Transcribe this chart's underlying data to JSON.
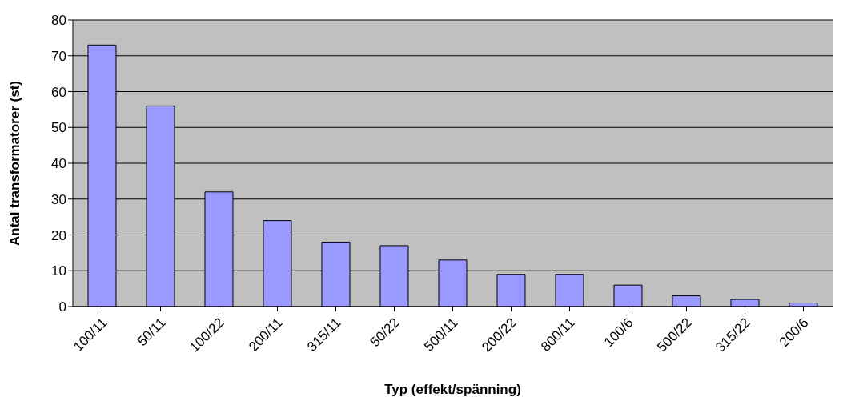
{
  "chart_data": {
    "type": "bar",
    "xlabel": "Typ (effekt/spänning)",
    "ylabel": "Antal transformatorer (st)",
    "categories": [
      "100/11",
      "50/11",
      "100/22",
      "200/11",
      "315/11",
      "50/22",
      "500/11",
      "200/22",
      "800/11",
      "100/6",
      "500/22",
      "315/22",
      "200/6"
    ],
    "values": [
      73,
      56,
      32,
      24,
      18,
      17,
      13,
      9,
      9,
      6,
      3,
      2,
      1
    ],
    "color": "#9999ff",
    "ylim": [
      0,
      80
    ],
    "yticks": [
      0,
      10,
      20,
      30,
      40,
      50,
      60,
      70,
      80
    ],
    "grid": "y"
  }
}
